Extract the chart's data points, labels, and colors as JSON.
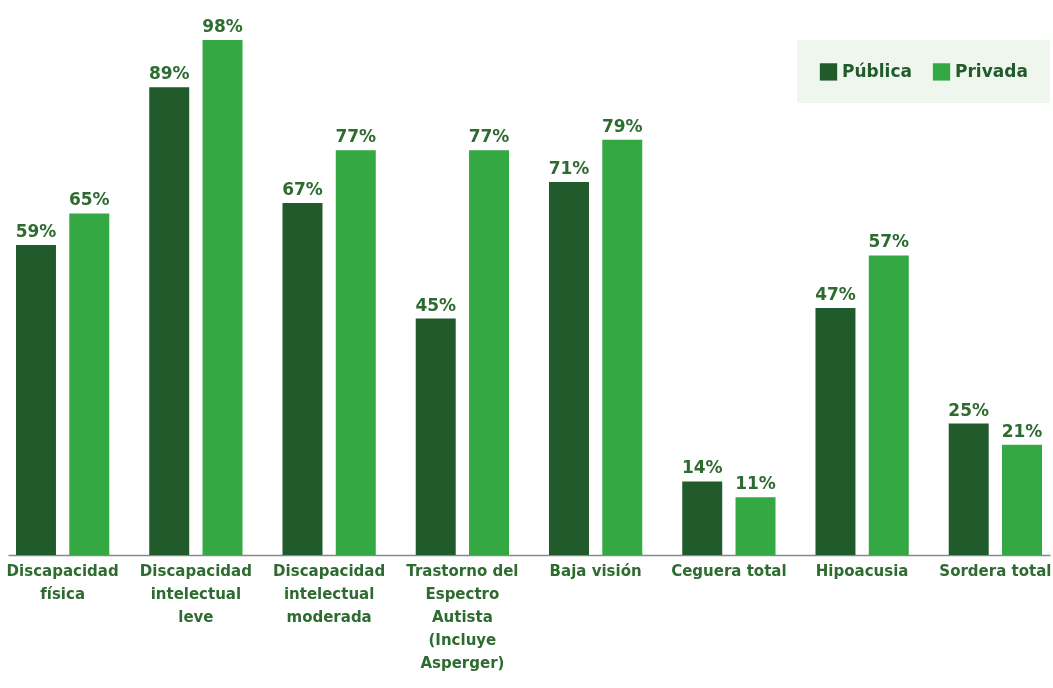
{
  "chart_data": {
    "type": "bar",
    "categories": [
      "Discapacidad física",
      "Discapacidad intelectual leve",
      "Discapacidad intelectual moderada",
      "Trastorno del Espectro Autista (Incluye Asperger)",
      "Baja visión",
      "Ceguera total",
      "Hipoacusia",
      "Sordera total"
    ],
    "series": [
      {
        "name": "Pública",
        "color": "#215a2b",
        "values": [
          59,
          89,
          67,
          45,
          71,
          14,
          47,
          25
        ],
        "value_labels": [
          "59%",
          "89%",
          "67%",
          "45%",
          "71%",
          "14%",
          "47%",
          "25%"
        ]
      },
      {
        "name": "Privada",
        "color": "#34a843",
        "values": [
          65,
          98,
          77,
          77,
          79,
          11,
          57,
          21
        ],
        "value_labels": [
          "65%",
          "98%",
          "77%",
          "77%",
          "79%",
          "11%",
          "57%",
          "21%"
        ]
      }
    ],
    "legend": "top right",
    "grid": false,
    "tick_labels": "x"
  }
}
